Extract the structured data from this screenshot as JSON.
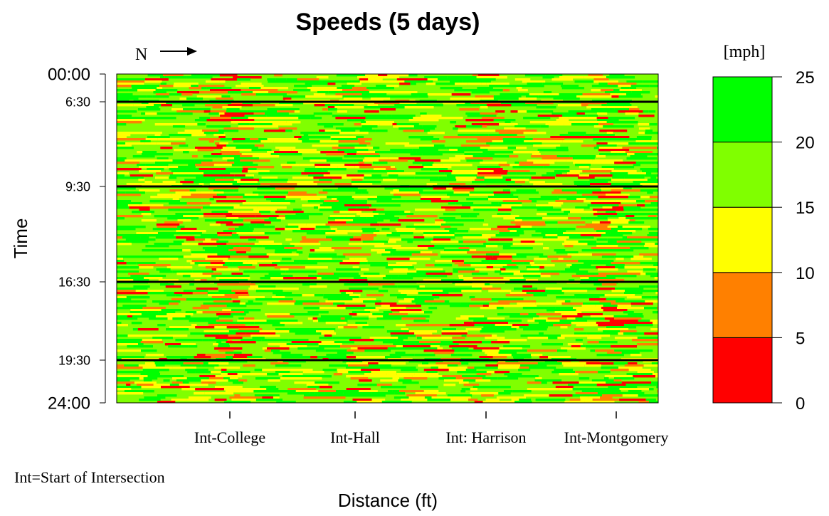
{
  "chart_data": {
    "type": "heatmap",
    "title": "Speeds (5 days)",
    "direction_label": "N",
    "xlabel": "Distance (ft)",
    "ylabel": "Time",
    "y_ticks": [
      "00:00",
      "6:30",
      "9:30",
      "16:30",
      "19:30",
      "24:00"
    ],
    "period_divider_times": [
      "6:30",
      "9:30",
      "16:30",
      "19:30"
    ],
    "x_ticks": [
      "Int-College",
      "Int-Hall",
      "Int: Harrison",
      "Int-Montgomery"
    ],
    "x_note": "Int=Start of Intersection",
    "colorbar": {
      "unit_label": "[mph]",
      "range": [
        0,
        25
      ],
      "bins": [
        {
          "from": 0,
          "to": 5,
          "color": "#ff0000"
        },
        {
          "from": 5,
          "to": 10,
          "color": "#ff8000"
        },
        {
          "from": 10,
          "to": 15,
          "color": "#ffff00"
        },
        {
          "from": 15,
          "to": 20,
          "color": "#80ff00"
        },
        {
          "from": 20,
          "to": 25,
          "color": "#00ff00"
        }
      ],
      "ticks": [
        "0",
        "5",
        "10",
        "15",
        "20",
        "25"
      ]
    },
    "slow_zones_near": [
      "Int-College",
      "Int-Montgomery"
    ]
  }
}
